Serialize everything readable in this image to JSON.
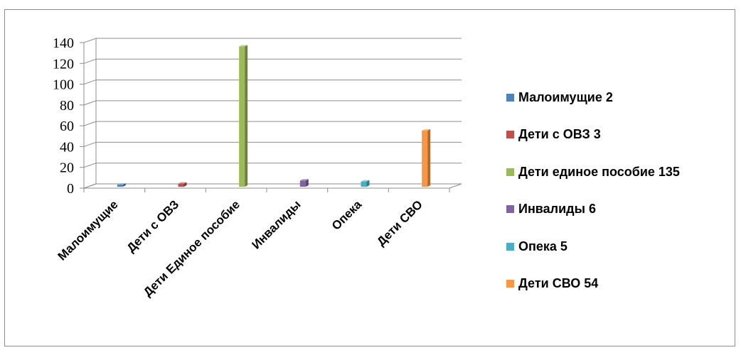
{
  "chart_data": {
    "type": "bar",
    "title": "",
    "xlabel": "",
    "ylabel": "",
    "categories": [
      "Малоимущие",
      "Дети с ОВЗ",
      "Дети Единое пособие",
      "Инвалиды",
      "Опека",
      "Дети СВО"
    ],
    "values": [
      2,
      3,
      135,
      6,
      5,
      54
    ],
    "ylim": [
      0,
      140
    ],
    "yticks": [
      "0",
      "20",
      "40",
      "60",
      "80",
      "100",
      "120",
      "140"
    ],
    "grid": true,
    "legend_position": "right",
    "colors": [
      "#4f81bd",
      "#c0504d",
      "#9bbb59",
      "#8064a2",
      "#4bacc6",
      "#f79646"
    ],
    "legend": [
      "Малоимущие 2",
      "Дети с ОВЗ 3",
      "Дети единое пособие 135",
      "Инвалиды 6",
      "Опека 5",
      "Дети СВО 54"
    ]
  }
}
